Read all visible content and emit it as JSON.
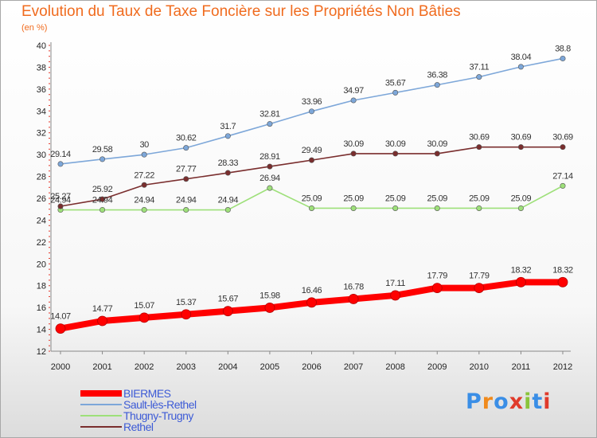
{
  "title": "Evolution du Taux de Taxe Foncière sur les Propriétés Non Bâties",
  "unit": "(en %)",
  "logo": {
    "text": "Proxiti",
    "colors": [
      "#3a8ee6",
      "#f08a1c",
      "#3a8ee6",
      "#e03a2a",
      "#8ac43a",
      "#3a8ee6",
      "#e03a2a"
    ]
  },
  "chart_data": {
    "type": "line",
    "title": "Evolution du Taux de Taxe Foncière sur les Propriétés Non Bâties",
    "ylabel": "(en %)",
    "xlabel": "",
    "ylim": [
      12,
      40
    ],
    "yticks": [
      12,
      14,
      16,
      18,
      20,
      22,
      24,
      26,
      28,
      30,
      32,
      34,
      36,
      38,
      40
    ],
    "grid": false,
    "legend": "bottom-left",
    "categories": [
      "2000",
      "2001",
      "2002",
      "2003",
      "2004",
      "2005",
      "2006",
      "2007",
      "2008",
      "2009",
      "2010",
      "2011",
      "2012"
    ],
    "series": [
      {
        "name": "BIERMES",
        "color": "#ff0000",
        "values": [
          14.07,
          14.77,
          15.07,
          15.37,
          15.67,
          15.98,
          16.46,
          16.78,
          17.11,
          17.79,
          17.79,
          18.32,
          18.32
        ]
      },
      {
        "name": "Sault-lès-Rethel",
        "color": "#7da7d9",
        "values": [
          29.14,
          29.58,
          30,
          30.62,
          31.7,
          32.81,
          33.96,
          34.97,
          35.67,
          36.38,
          37.11,
          38.04,
          38.8
        ]
      },
      {
        "name": "Thugny-Trugny",
        "color": "#9ee07a",
        "values": [
          24.94,
          24.94,
          24.94,
          24.94,
          24.94,
          26.94,
          25.09,
          25.09,
          25.09,
          25.09,
          25.09,
          25.09,
          27.14
        ]
      },
      {
        "name": "Rethel",
        "color": "#7a2e2e",
        "values": [
          25.27,
          25.92,
          27.22,
          27.77,
          28.33,
          28.91,
          29.49,
          30.09,
          30.09,
          30.09,
          30.69,
          30.69,
          30.69
        ]
      }
    ]
  }
}
